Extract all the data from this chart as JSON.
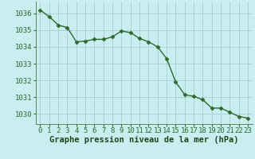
{
  "hours": [
    0,
    1,
    2,
    3,
    4,
    5,
    6,
    7,
    8,
    9,
    10,
    11,
    12,
    13,
    14,
    15,
    16,
    17,
    18,
    19,
    20,
    21,
    22,
    23
  ],
  "pressure": [
    1036.2,
    1035.8,
    1035.3,
    1035.15,
    1034.3,
    1034.35,
    1034.45,
    1034.45,
    1034.6,
    1034.95,
    1034.85,
    1034.5,
    1034.3,
    1034.0,
    1033.3,
    1031.9,
    1031.15,
    1031.05,
    1030.85,
    1030.35,
    1030.35,
    1030.1,
    1029.85,
    1029.75
  ],
  "line_color": "#2d6a2d",
  "marker": "D",
  "markersize": 2.5,
  "linewidth": 1.0,
  "bg_color": "#c8eef0",
  "plot_bg_color": "#c8eef0",
  "grid_color": "#a0c8c8",
  "xlabel": "Graphe pression niveau de la mer (hPa)",
  "xlabel_color": "#1a4a1a",
  "xlabel_fontsize": 7.5,
  "tick_color": "#2d6a2d",
  "tick_fontsize": 6.5,
  "ylim": [
    1029.4,
    1036.7
  ],
  "yticks": [
    1030,
    1031,
    1032,
    1033,
    1034,
    1035,
    1036
  ],
  "xticks": [
    0,
    1,
    2,
    3,
    4,
    5,
    6,
    7,
    8,
    9,
    10,
    11,
    12,
    13,
    14,
    15,
    16,
    17,
    18,
    19,
    20,
    21,
    22,
    23
  ]
}
